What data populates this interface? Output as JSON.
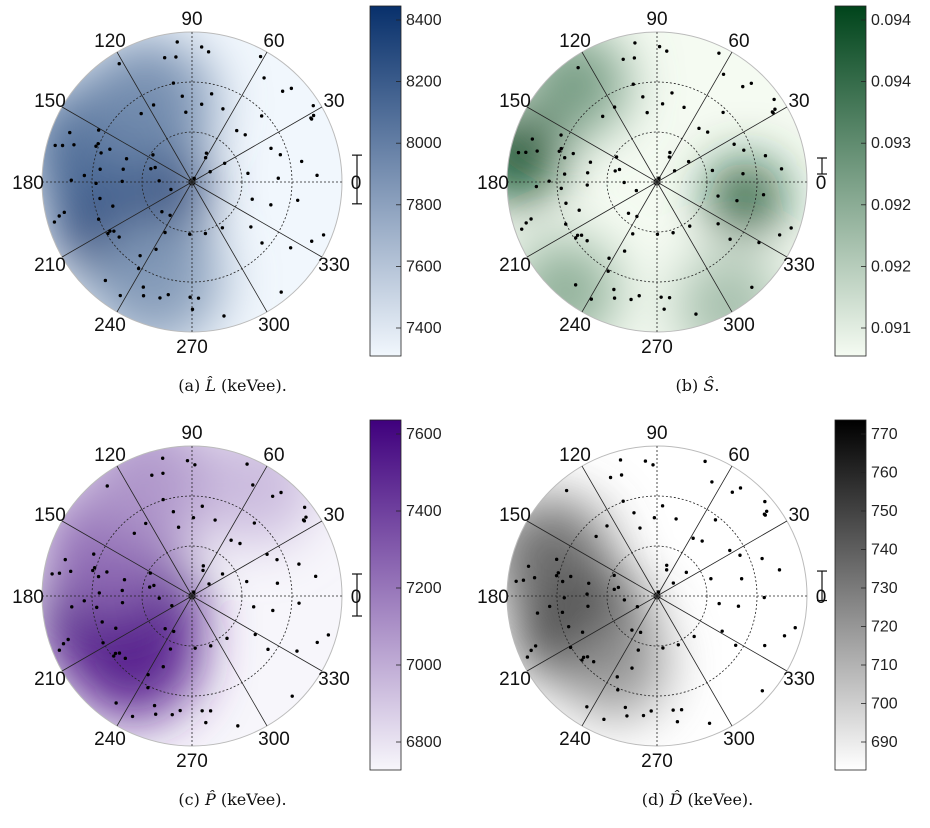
{
  "figure": {
    "angle_labels": [
      "0",
      "30",
      "60",
      "90",
      "120",
      "150",
      "180",
      "210",
      "240",
      "270",
      "300",
      "330"
    ]
  },
  "chart_data": [
    {
      "type": "heatmap",
      "projection": "polar",
      "caption_prefix": "(a)",
      "caption_symbol": "L̂",
      "caption_suffix": " (keVee).",
      "colorbar_ticks": [
        "8400",
        "8200",
        "8000",
        "7800",
        "7600",
        "7400"
      ],
      "colorbar_range": [
        7300,
        8450
      ],
      "color_low": "#f1f7fd",
      "color_high": "#08306b",
      "error_bar": {
        "center": 7880,
        "half_width": 80
      },
      "dark_regions": "left, lower-left (~200°) and upper-left; lighter toward right (0°–330°)",
      "grid_rings": 3
    },
    {
      "type": "heatmap",
      "projection": "polar",
      "caption_prefix": "(b)",
      "caption_symbol": "Ŝ",
      "caption_suffix": ".",
      "colorbar_ticks": [
        "0.094",
        "0.094",
        "0.093",
        "0.092",
        "0.092",
        "0.091"
      ],
      "colorbar_range": [
        0.091,
        0.0945
      ],
      "color_low": "#f5fbf2",
      "color_high": "#00441b",
      "error_bar": {
        "center": 0.0929,
        "half_width": 8e-05
      },
      "dark_regions": "outer left edge (~160°–190°) and right near 345°; lightest near center",
      "grid_rings": 3
    },
    {
      "type": "heatmap",
      "projection": "polar",
      "caption_prefix": "(c)",
      "caption_symbol": "P̂",
      "caption_suffix": " (keVee).",
      "colorbar_ticks": [
        "7600",
        "7400",
        "7200",
        "7000",
        "6800"
      ],
      "colorbar_range": [
        6650,
        7650
      ],
      "color_low": "#f7f6fb",
      "color_high": "#3f007d",
      "error_bar": {
        "center": 7150,
        "half_width": 60
      },
      "dark_regions": "left and lower-left (~180°–230°); lightest to the right (~0°–330°)",
      "grid_rings": 3
    },
    {
      "type": "heatmap",
      "projection": "polar",
      "caption_prefix": "(d)",
      "caption_symbol": "D̂",
      "caption_suffix": " (keVee).",
      "colorbar_ticks": [
        "770",
        "760",
        "750",
        "740",
        "730",
        "720",
        "710",
        "700",
        "690"
      ],
      "colorbar_range": [
        685,
        780
      ],
      "color_low": "#ffffff",
      "color_high": "#000000",
      "error_bar": {
        "center": 735,
        "half_width": 4
      },
      "dark_regions": "left and lower-left (~190°–215°); white to the right and top",
      "grid_rings": 3
    }
  ]
}
